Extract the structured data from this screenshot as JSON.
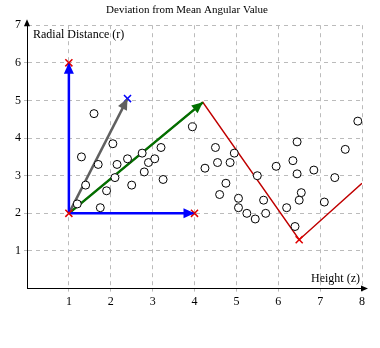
{
  "chart_data": {
    "type": "scatter",
    "title": "Deviation from Mean Angular Value",
    "x_label": "Height (z)",
    "y_label": "Radial Distance (r)",
    "xlim": [
      0,
      8
    ],
    "xticks": [
      1,
      2,
      3,
      4,
      5,
      6,
      7,
      8
    ],
    "ylim": [
      0,
      7
    ],
    "yticks": [
      1,
      2,
      3,
      4,
      5,
      6,
      7
    ],
    "grid": true,
    "series": [
      {
        "type": "scatter",
        "marker": "circle",
        "color": "#000000",
        "x": [
          1.2,
          1.3,
          1.4,
          1.6,
          1.7,
          1.75,
          1.9,
          2.05,
          2.1,
          2.15,
          2.4,
          2.5,
          2.75,
          2.8,
          2.9,
          3.05,
          3.2,
          3.25,
          3.95,
          4.25,
          4.5,
          4.55,
          4.6,
          4.75,
          4.85,
          4.95,
          5.05,
          5.05,
          5.25,
          5.45,
          5.5,
          5.65,
          5.7,
          5.95,
          6.2,
          6.35,
          6.4,
          6.45,
          6.45,
          6.5,
          6.55,
          6.85,
          7.1,
          7.35,
          7.6,
          7.9
        ],
        "values": [
          2.25,
          3.5,
          2.75,
          4.65,
          3.3,
          2.15,
          2.6,
          3.85,
          2.95,
          3.3,
          3.45,
          2.75,
          3.6,
          3.1,
          3.35,
          3.45,
          3.75,
          2.9,
          4.3,
          3.2,
          3.75,
          3.35,
          2.5,
          2.8,
          3.35,
          3.6,
          2.4,
          2.15,
          2.0,
          1.85,
          3.0,
          2.35,
          2.0,
          3.25,
          2.15,
          3.4,
          1.65,
          3.05,
          3.9,
          2.35,
          2.55,
          3.15,
          2.3,
          2.95,
          3.7,
          4.45
        ]
      },
      {
        "type": "line",
        "marker": "none",
        "color": "#c00000",
        "x": [
          1,
          4.2,
          6.5,
          8
        ],
        "values": [
          2,
          4.95,
          1.3,
          2.8
        ]
      },
      {
        "type": "line",
        "line_style": "arrow",
        "color": "#0000ff",
        "x": [
          1,
          1
        ],
        "values": [
          2,
          6
        ]
      },
      {
        "type": "line",
        "line_style": "arrow",
        "color": "#0000ff",
        "x": [
          1,
          4
        ],
        "values": [
          2,
          2
        ]
      },
      {
        "type": "line",
        "line_style": "arrow",
        "color": "#606060",
        "x": [
          1,
          2.4
        ],
        "values": [
          2,
          5.05
        ]
      },
      {
        "type": "line",
        "line_style": "arrow",
        "color": "#007000",
        "x": [
          1,
          4.2
        ],
        "values": [
          2,
          4.95
        ]
      },
      {
        "type": "scatter",
        "marker": "cross",
        "color": "#e00000",
        "x": [
          1,
          1,
          4,
          6.5
        ],
        "values": [
          2,
          6,
          2,
          1.3
        ]
      },
      {
        "type": "scatter",
        "marker": "cross",
        "color": "#0000ff",
        "x": [
          2.4
        ],
        "values": [
          5.05
        ]
      }
    ]
  }
}
